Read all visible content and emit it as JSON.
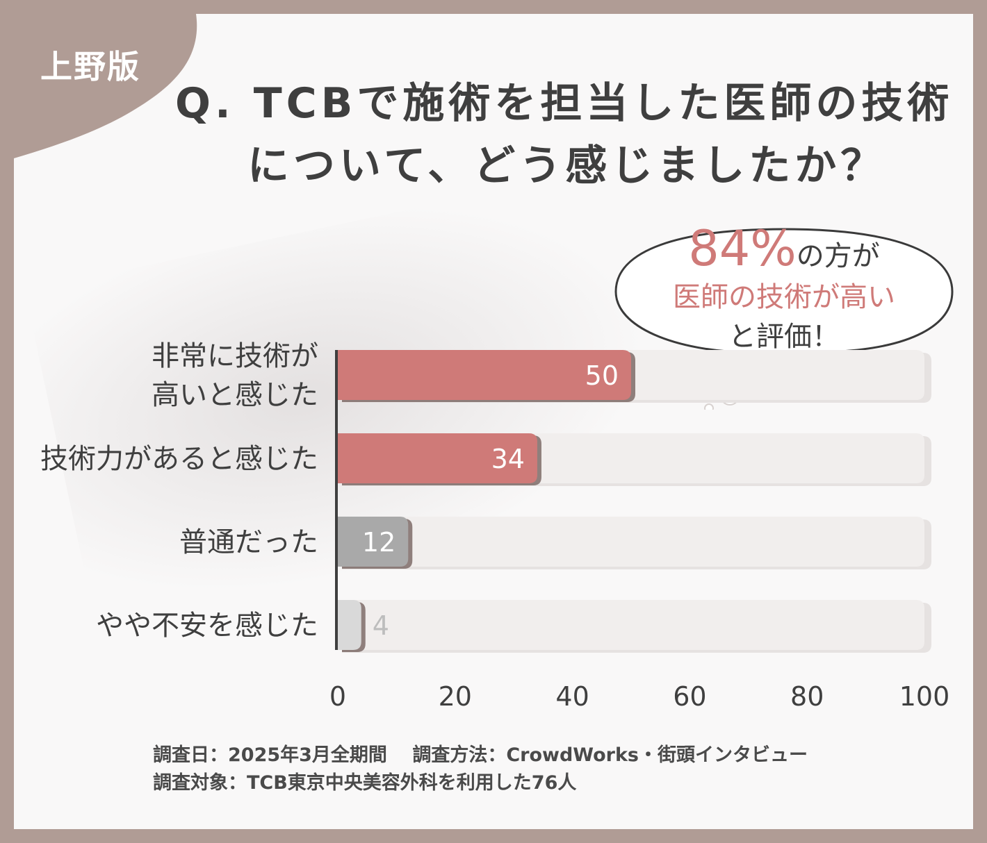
{
  "badge": "上野版",
  "title": {
    "line1": "Q. TCBで施術を担当した医師の技術",
    "line2": "について、どう感じましたか？"
  },
  "callout": {
    "percent": "84%",
    "line1_suffix": "の方が",
    "line2": "医師の技術が高い",
    "line3": "と評価！"
  },
  "footnote": {
    "line1": "調査日：2025年3月全期間　 調査方法：CrowdWorks・街頭インタビュー",
    "line2": "調査対象：TCB東京中央美容外科を利用した76人"
  },
  "colors": {
    "border": "#b09c95",
    "accent": "#cf7a78",
    "neutral": "#a9a9a9",
    "light": "#d9d9d9",
    "track": "#f1eeed",
    "text": "#3f3f3f"
  },
  "chart_data": {
    "type": "bar",
    "orientation": "horizontal",
    "categories": [
      "非常に技術が\n高いと感じた",
      "技術力があると感じた",
      "普通だった",
      "やや不安を感じた"
    ],
    "values": [
      50,
      34,
      12,
      4
    ],
    "bar_colors": [
      "#cf7a78",
      "#cf7a78",
      "#a9a9a9",
      "#d9d9d9"
    ],
    "label_colors": [
      "#ffffff",
      "#ffffff",
      "#ffffff",
      "#bdbdbd"
    ],
    "xlim": [
      0,
      100
    ],
    "xticks": [
      0,
      20,
      40,
      60,
      80,
      100
    ],
    "grid": false,
    "legend": "none"
  }
}
